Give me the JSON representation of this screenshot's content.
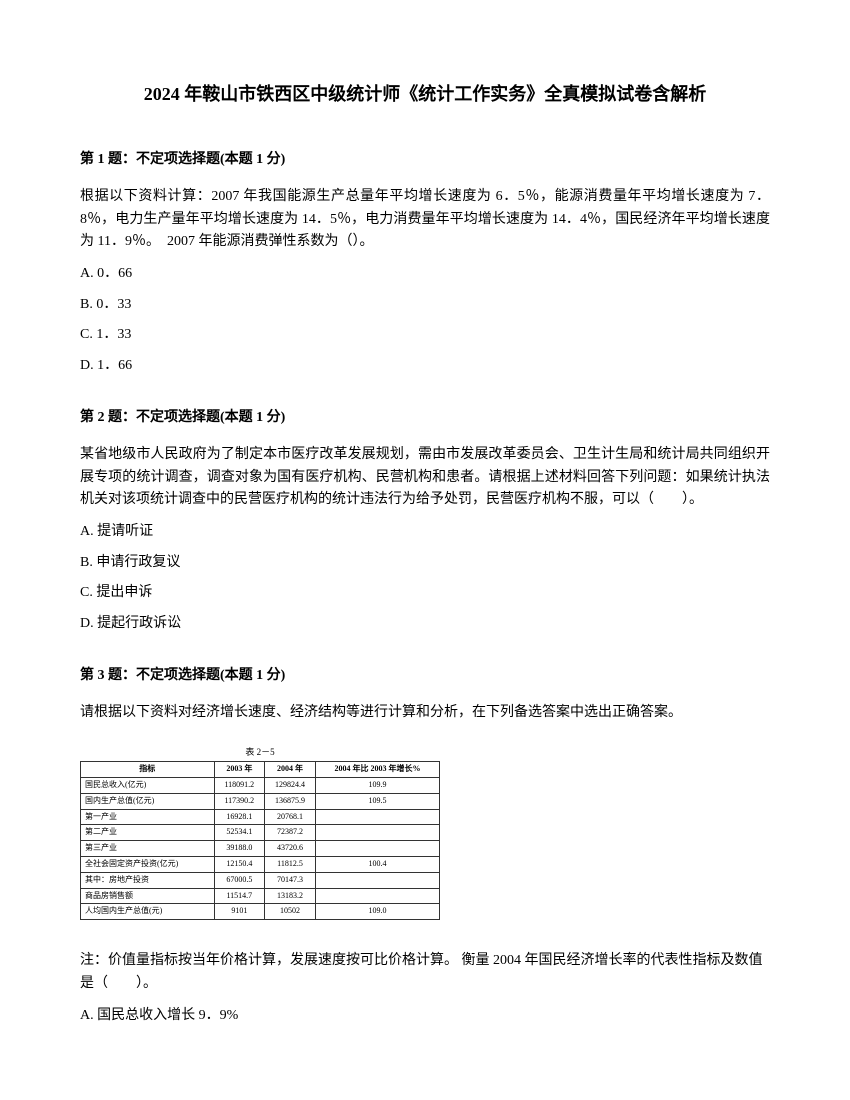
{
  "title": "2024 年鞍山市铁西区中级统计师《统计工作实务》全真模拟试卷含解析",
  "q1": {
    "header": "第 1 题：不定项选择题(本题 1 分)",
    "text": "根据以下资料计算：2007 年我国能源生产总量年平均增长速度为 6．5％，能源消费量年平均增长速度为 7．8％，电力生产量年平均增长速度为 14．5％，电力消费量年平均增长速度为 14．4％，国民经济年平均增长速度为 11．9％。　2007 年能源消费弹性系数为（）。",
    "optA": "A. 0．66",
    "optB": "B. 0．33",
    "optC": "C. 1．33",
    "optD": "D. 1．66"
  },
  "q2": {
    "header": "第 2 题：不定项选择题(本题 1 分)",
    "text": "某省地级市人民政府为了制定本市医疗改革发展规划，需由市发展改革委员会、卫生计生局和统计局共同组织开展专项的统计调查，调查对象为国有医疗机构、民营机构和患者。请根据上述材料回答下列问题：如果统计执法机关对该项统计调查中的民营医疗机构的统计违法行为给予处罚，民营医疗机构不服，可以（　　）。",
    "optA": "A. 提请听证",
    "optB": "B. 申请行政复议",
    "optC": "C. 提出申诉",
    "optD": "D. 提起行政诉讼"
  },
  "q3": {
    "header": "第 3 题：不定项选择题(本题 1 分)",
    "text": "请根据以下资料对经济增长速度、经济结构等进行计算和分析，在下列备选答案中选出正确答案。",
    "tableTitle": "表 2－5",
    "tableHeaders": [
      "指标",
      "2003 年",
      "2004 年",
      "2004 年比 2003 年增长%"
    ],
    "tableRows": [
      [
        "国民总收入(亿元)",
        "118091.2",
        "129824.4",
        "109.9"
      ],
      [
        "国内生产总值(亿元)",
        "117390.2",
        "136875.9",
        "109.5"
      ],
      [
        "第一产业",
        "16928.1",
        "20768.1",
        ""
      ],
      [
        "第二产业",
        "52534.1",
        "72387.2",
        ""
      ],
      [
        "第三产业",
        "39188.0",
        "43720.6",
        ""
      ],
      [
        "全社会固定资产投资(亿元)",
        "12150.4",
        "11812.5",
        "100.4"
      ],
      [
        "其中：房地产投资",
        "67000.5",
        "70147.3",
        ""
      ],
      [
        "商品房销售额",
        "11514.7",
        "13183.2",
        ""
      ],
      [
        "人均国内生产总值(元)",
        "9101",
        "10502",
        "109.0"
      ]
    ],
    "note": "注：价值量指标按当年价格计算，发展速度按可比价格计算。 衡量 2004 年国民经济增长率的代表性指标及数值是（　　）。",
    "optA": "A. 国民总收入增长 9．9%"
  }
}
